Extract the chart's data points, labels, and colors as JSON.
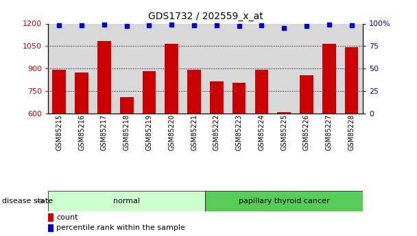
{
  "title": "GDS1732 / 202559_x_at",
  "samples": [
    "GSM85215",
    "GSM85216",
    "GSM85217",
    "GSM85218",
    "GSM85219",
    "GSM85220",
    "GSM85221",
    "GSM85222",
    "GSM85223",
    "GSM85224",
    "GSM85225",
    "GSM85226",
    "GSM85227",
    "GSM85228"
  ],
  "counts": [
    893,
    872,
    1083,
    710,
    882,
    1063,
    893,
    812,
    805,
    893,
    607,
    855,
    1063,
    1043
  ],
  "percentiles": [
    98,
    98,
    99,
    97,
    98,
    99,
    98,
    98,
    97,
    98,
    95,
    97,
    99,
    98
  ],
  "groups": [
    {
      "label": "normal",
      "start": 0,
      "end": 7,
      "color": "#ccffcc"
    },
    {
      "label": "papillary thyroid cancer",
      "start": 7,
      "end": 14,
      "color": "#55cc55"
    }
  ],
  "ylim_left": [
    600,
    1200
  ],
  "ylim_right": [
    0,
    100
  ],
  "yticks_left": [
    600,
    750,
    900,
    1050,
    1200
  ],
  "yticks_right": [
    0,
    25,
    50,
    75,
    100
  ],
  "yticklabels_right": [
    "0",
    "25",
    "50",
    "75",
    "100%"
  ],
  "bar_color": "#cc0000",
  "dot_color": "#0000cc",
  "bg_color": "#d8d8d8",
  "grid_color": "#000000",
  "disease_state_label": "disease state",
  "legend_count": "count",
  "legend_percentile": "percentile rank within the sample",
  "fig_bg": "#ffffff"
}
